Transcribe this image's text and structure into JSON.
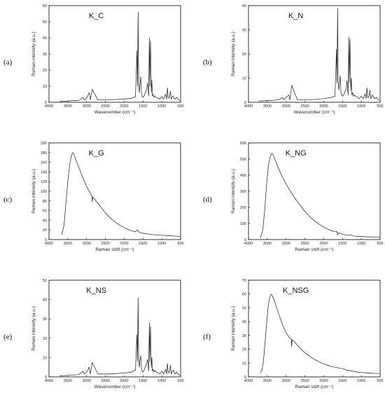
{
  "chart_data": [
    {
      "type": "line",
      "panel": "(a)",
      "title": "K_C",
      "xlabel": "Wavenumber   (cm⁻¹)",
      "ylabel": "Raman intensity   (a.u.)",
      "xlim": [
        4000,
        500
      ],
      "ylim": [
        0,
        60
      ],
      "xticks": [
        4000,
        3500,
        3000,
        2500,
        2000,
        1500,
        1000,
        500
      ],
      "yticks": [
        0,
        10,
        20,
        30,
        40,
        50,
        60
      ],
      "series": [
        {
          "x": [
            3720,
            3500,
            3200,
            3100,
            3060,
            3000,
            2930,
            2900,
            2850,
            2700,
            2400,
            2000,
            1800,
            1700,
            1660,
            1645,
            1630,
            1615,
            1600,
            1585,
            1560,
            1540,
            1520,
            1500,
            1470,
            1440,
            1400,
            1380,
            1350,
            1330,
            1320,
            1300,
            1280,
            1265,
            1250,
            1230,
            1210,
            1180,
            1150,
            1100,
            1050,
            1000,
            950,
            900,
            870,
            850,
            830,
            800,
            770,
            750,
            700,
            650,
            600,
            550,
            520
          ],
          "y": [
            0.5,
            0.8,
            1.2,
            3,
            1.5,
            2.5,
            6,
            1.5,
            8,
            1.5,
            1.5,
            2,
            2.5,
            3.5,
            32,
            10,
            56,
            12,
            6,
            10,
            16,
            5,
            4,
            3,
            4,
            6,
            8,
            12,
            4,
            40,
            10,
            38,
            6,
            14,
            4,
            5,
            3,
            4,
            3,
            2.5,
            2,
            3.5,
            2,
            5,
            2,
            9,
            3,
            2.5,
            7,
            2,
            4,
            2,
            3,
            1.5,
            1
          ]
        }
      ]
    },
    {
      "type": "line",
      "panel": "(b)",
      "title": "K_N",
      "xlabel": "Wavenumber   (cm⁻¹)",
      "ylabel": "Raman intensity   (a.u.)",
      "xlim": [
        4000,
        500
      ],
      "ylim": [
        0,
        40
      ],
      "xticks": [
        4000,
        3500,
        3000,
        2500,
        2000,
        1500,
        1000,
        500
      ],
      "yticks": [
        0,
        10,
        20,
        30,
        40
      ],
      "series": [
        {
          "x": [
            3720,
            3500,
            3200,
            3100,
            3060,
            3000,
            2930,
            2900,
            2850,
            2700,
            2400,
            2000,
            1800,
            1700,
            1660,
            1645,
            1630,
            1615,
            1600,
            1585,
            1560,
            1540,
            1520,
            1500,
            1470,
            1440,
            1400,
            1380,
            1350,
            1330,
            1320,
            1300,
            1280,
            1265,
            1250,
            1230,
            1210,
            1180,
            1150,
            1100,
            1050,
            1000,
            950,
            900,
            870,
            850,
            830,
            800,
            770,
            750,
            700,
            650,
            600,
            550,
            520
          ],
          "y": [
            0.5,
            0.7,
            1,
            2,
            1,
            2,
            3,
            1,
            7,
            1,
            1,
            1.5,
            2,
            2.5,
            22,
            8,
            39,
            9,
            5,
            7,
            11,
            4,
            3,
            2.5,
            3,
            4,
            6,
            9,
            3,
            27,
            8,
            26,
            5,
            10,
            3,
            4,
            2.5,
            3,
            2.5,
            2,
            1.5,
            2.5,
            1.5,
            3.5,
            1.5,
            6,
            2,
            2,
            5,
            1.5,
            3,
            1.5,
            2,
            1,
            0.8
          ]
        }
      ]
    },
    {
      "type": "line",
      "panel": "(c)",
      "title": "K_G",
      "xlabel": "Raman shift   (cm⁻¹)",
      "ylabel": "Raman intensity   (a.u.)",
      "xlim": [
        4000,
        500
      ],
      "ylim": [
        0,
        200
      ],
      "xticks": [
        4000,
        3500,
        3000,
        2500,
        2000,
        1500,
        1000,
        500
      ],
      "yticks": [
        0,
        20,
        40,
        60,
        80,
        100,
        120,
        140,
        160,
        180,
        200
      ],
      "series": [
        {
          "x": [
            3660,
            3600,
            3550,
            3500,
            3450,
            3400,
            3370,
            3350,
            3300,
            3200,
            3100,
            3000,
            2900,
            2860,
            2850,
            2840,
            2800,
            2700,
            2600,
            2500,
            2400,
            2300,
            2200,
            2100,
            2000,
            1900,
            1800,
            1700,
            1650,
            1600,
            1500,
            1400,
            1300,
            1200,
            1100,
            1000,
            900,
            800,
            700,
            600,
            520
          ],
          "y": [
            10,
            30,
            75,
            120,
            155,
            175,
            180,
            178,
            168,
            148,
            128,
            110,
            96,
            90,
            78,
            88,
            85,
            75,
            65,
            55,
            47,
            40,
            34,
            29,
            25,
            21,
            18,
            16,
            20,
            15,
            13,
            12,
            11,
            10,
            9.5,
            9,
            8.5,
            8,
            7.5,
            7,
            6.5
          ]
        }
      ]
    },
    {
      "type": "line",
      "panel": "(d)",
      "title": "K_NG",
      "xlabel": "Raman shift   (cm⁻¹)",
      "ylabel": "Raman intensity   (a.u.)",
      "xlim": [
        4000,
        500
      ],
      "ylim": [
        0,
        600
      ],
      "xticks": [
        4000,
        3500,
        3000,
        2500,
        2000,
        1500,
        1000,
        500
      ],
      "yticks": [
        0,
        100,
        200,
        300,
        400,
        500,
        600
      ],
      "series": [
        {
          "x": [
            3680,
            3620,
            3570,
            3520,
            3470,
            3420,
            3380,
            3350,
            3300,
            3200,
            3100,
            3000,
            2900,
            2800,
            2700,
            2600,
            2500,
            2400,
            2300,
            2200,
            2100,
            2000,
            1900,
            1800,
            1700,
            1650,
            1630,
            1600,
            1500,
            1400,
            1350,
            1300,
            1200,
            1100,
            1000,
            900,
            800,
            700,
            600,
            520
          ],
          "y": [
            10,
            60,
            180,
            340,
            460,
            520,
            535,
            530,
            500,
            440,
            390,
            345,
            305,
            270,
            235,
            205,
            175,
            150,
            128,
            108,
            92,
            78,
            66,
            56,
            48,
            50,
            30,
            42,
            34,
            28,
            26,
            30,
            22,
            20,
            19,
            18,
            17,
            16,
            15,
            14
          ]
        }
      ]
    },
    {
      "type": "line",
      "panel": "(e)",
      "title": "K_NS",
      "xlabel": "Wavenumber   (cm⁻¹)",
      "ylabel": "Raman intensity   (a.u.)",
      "xlim": [
        4000,
        500
      ],
      "ylim": [
        0,
        50
      ],
      "xticks": [
        4000,
        3500,
        3000,
        2500,
        2000,
        1500,
        1000,
        500
      ],
      "yticks": [
        0,
        10,
        20,
        30,
        40,
        50
      ],
      "series": [
        {
          "x": [
            3720,
            3500,
            3200,
            3100,
            3060,
            3000,
            2930,
            2900,
            2850,
            2700,
            2400,
            2000,
            1800,
            1700,
            1660,
            1645,
            1630,
            1615,
            1600,
            1585,
            1560,
            1540,
            1520,
            1500,
            1470,
            1440,
            1400,
            1380,
            1350,
            1330,
            1320,
            1300,
            1280,
            1265,
            1250,
            1230,
            1210,
            1180,
            1150,
            1100,
            1050,
            1000,
            950,
            900,
            870,
            850,
            830,
            800,
            770,
            750,
            700,
            650,
            600,
            550,
            520
          ],
          "y": [
            0.5,
            0.8,
            1.2,
            3,
            1.5,
            2.5,
            5,
            1.5,
            7.5,
            1.5,
            1.5,
            2,
            2.5,
            3.5,
            22,
            8,
            41,
            9,
            5,
            8,
            11,
            4,
            3,
            2.5,
            3.5,
            5,
            7,
            9,
            3,
            28,
            8,
            26,
            5,
            10,
            3,
            4,
            2.5,
            3.5,
            2.5,
            2,
            1.5,
            3,
            1.5,
            4,
            1.5,
            7,
            2.5,
            2,
            6,
            1.5,
            3.5,
            1.5,
            2.5,
            1,
            0.8
          ]
        }
      ]
    },
    {
      "type": "line",
      "panel": "(f)",
      "title": "K_NSG",
      "xlabel": "Raman shift   (cm⁻¹)",
      "ylabel": "Raman intensity   (a.u.)",
      "xlim": [
        4000,
        500
      ],
      "ylim": [
        0,
        70
      ],
      "xticks": [
        4000,
        3500,
        3000,
        2500,
        2000,
        1500,
        1000,
        500
      ],
      "yticks": [
        0,
        10,
        20,
        30,
        40,
        50,
        60,
        70
      ],
      "series": [
        {
          "x": [
            3680,
            3640,
            3600,
            3560,
            3520,
            3480,
            3440,
            3400,
            3370,
            3340,
            3300,
            3250,
            3200,
            3150,
            3100,
            3050,
            3000,
            2950,
            2900,
            2860,
            2850,
            2840,
            2800,
            2700,
            2600,
            2500,
            2400,
            2300,
            2200,
            2100,
            2000,
            1900,
            1800,
            1700,
            1600,
            1500,
            1400,
            1300,
            1200,
            1100,
            1000,
            900,
            800,
            700,
            600,
            520
          ],
          "y": [
            3,
            5,
            12,
            25,
            38,
            50,
            57,
            60,
            59,
            57,
            54,
            50,
            46,
            42,
            38,
            35,
            32,
            30,
            28,
            27,
            22,
            27,
            26,
            23,
            20,
            17.5,
            15.5,
            13.5,
            12,
            10.5,
            9.5,
            8.5,
            7.5,
            7,
            6.5,
            6,
            5,
            4.5,
            4,
            3.5,
            3.2,
            3,
            2.8,
            2.6,
            2.5,
            2.5
          ]
        }
      ]
    }
  ]
}
